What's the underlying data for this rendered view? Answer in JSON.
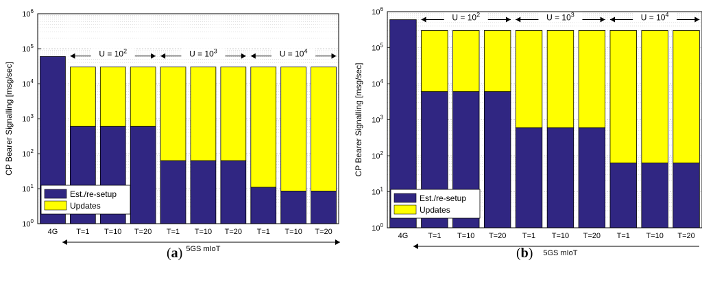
{
  "colors": {
    "est": "#302682",
    "updates": "#ffff00",
    "axis": "#000000",
    "grid": "#d0d0d0"
  },
  "panel_labels": [
    {
      "open": "(",
      "letter": "a",
      "close": ")"
    },
    {
      "open": "(",
      "letter": "b",
      "close": ")"
    }
  ],
  "chart_data": [
    {
      "type": "bar",
      "stacked": true,
      "yscale": "log",
      "ylim": [
        1,
        1000000
      ],
      "ylabel": "CP Bearer Signalling [msg/sec]",
      "xlabel": "5GS mIoT",
      "categories": [
        "4G",
        "T=1",
        "T=10",
        "T=20",
        "T=1",
        "T=10",
        "T=20",
        "T=1",
        "T=10",
        "T=20"
      ],
      "series": [
        {
          "name": "Est./re-setup",
          "values": [
            60000,
            600,
            600,
            600,
            63,
            63,
            63,
            11,
            8.5,
            8.5
          ]
        },
        {
          "name": "Updates",
          "values": [
            0,
            29400,
            29400,
            29400,
            29937,
            29937,
            29937,
            29989,
            29991.5,
            29991.5
          ]
        }
      ],
      "totals": [
        60000,
        30000,
        30000,
        30000,
        30000,
        30000,
        30000,
        30000,
        30000,
        30000
      ],
      "groups": [
        {
          "prefix": "U = 10",
          "exp": "2"
        },
        {
          "prefix": "U = 10",
          "exp": "3"
        },
        {
          "prefix": "U = 10",
          "exp": "4"
        }
      ],
      "legend": [
        "Est./re-setup",
        "Updates"
      ],
      "legend_position": "bottom-left",
      "grid": true
    },
    {
      "type": "bar",
      "stacked": true,
      "yscale": "log",
      "ylim": [
        1,
        1000000
      ],
      "ylabel": "CP Bearer Signalling [msg/sec]",
      "xlabel": "5GS mIoT",
      "categories": [
        "4G",
        "T=1",
        "T=10",
        "T=20",
        "T=1",
        "T=10",
        "T=20",
        "T=1",
        "T=10",
        "T=20"
      ],
      "series": [
        {
          "name": "Est./re-setup",
          "values": [
            600000,
            6000,
            6000,
            6000,
            600,
            600,
            600,
            63,
            63,
            63
          ]
        },
        {
          "name": "Updates",
          "values": [
            0,
            294000,
            294000,
            294000,
            299400,
            299400,
            299400,
            299937,
            299937,
            299937
          ]
        }
      ],
      "totals": [
        600000,
        300000,
        300000,
        300000,
        300000,
        300000,
        300000,
        300000,
        300000,
        300000
      ],
      "groups": [
        {
          "prefix": "U = 10",
          "exp": "2"
        },
        {
          "prefix": "U = 10",
          "exp": "3"
        },
        {
          "prefix": "U = 10",
          "exp": "4"
        }
      ],
      "legend": [
        "Est./re-setup",
        "Updates"
      ],
      "legend_position": "bottom-left",
      "grid": true
    }
  ]
}
